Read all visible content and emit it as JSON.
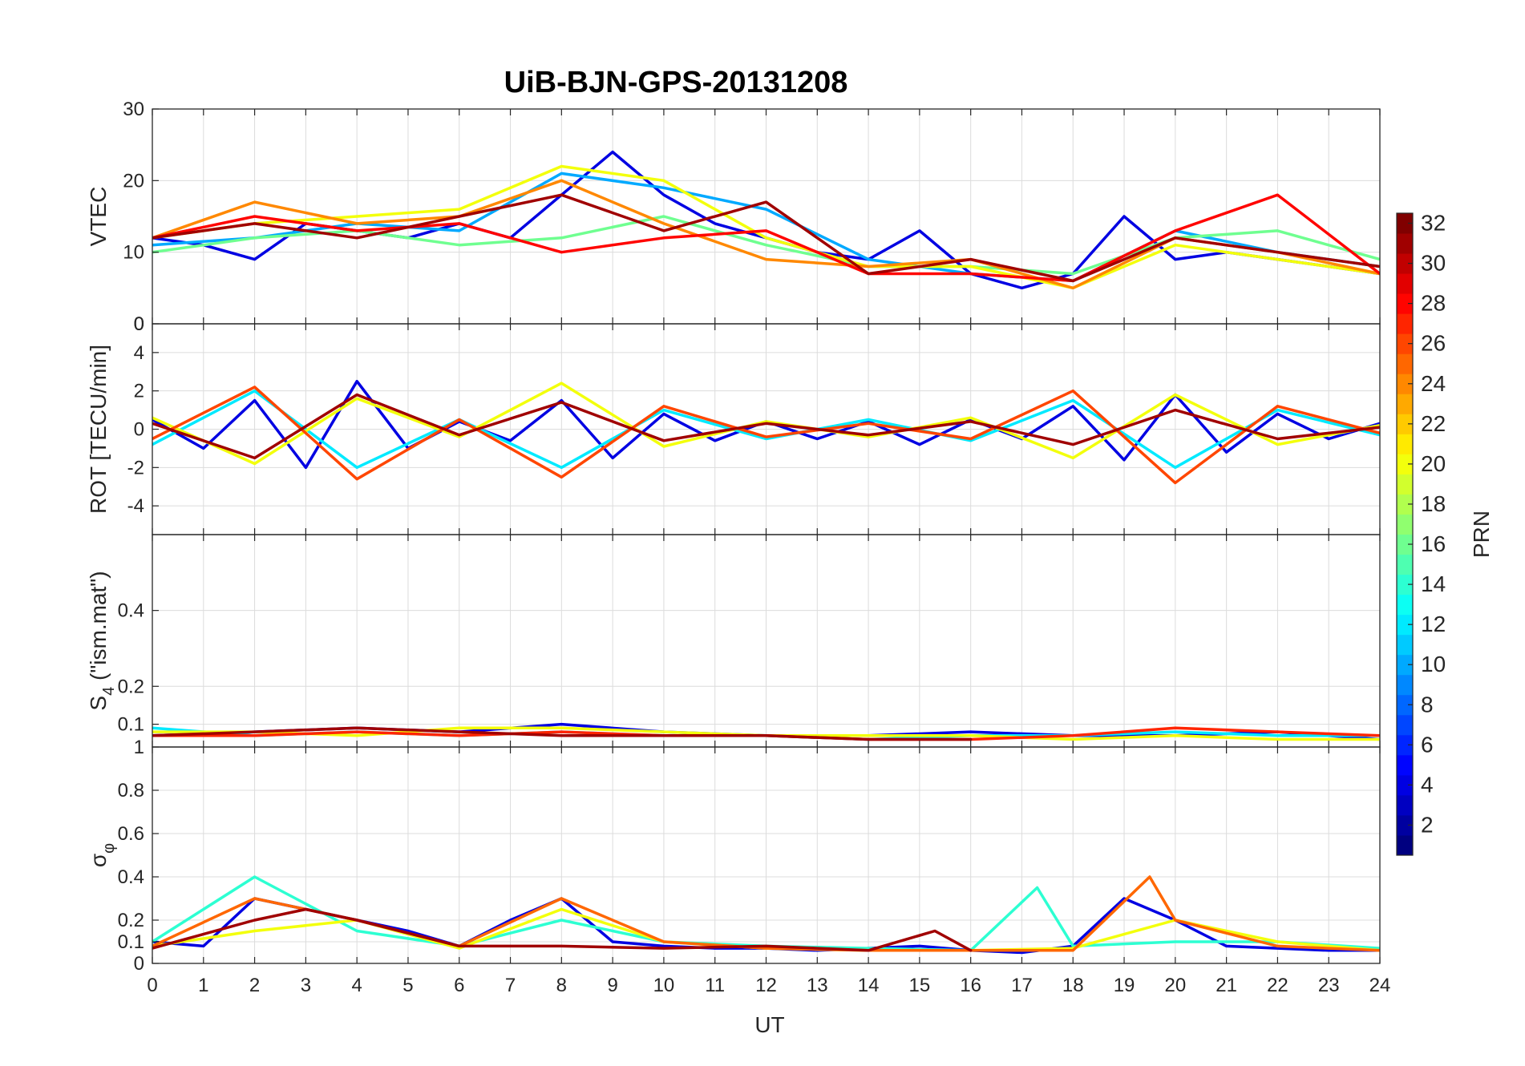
{
  "chart_data": {
    "type": "line",
    "title": "UiB-BJN-GPS-20131208",
    "xlabel": "UT",
    "xlim": [
      0,
      24
    ],
    "xticks": [
      "0",
      "1",
      "2",
      "3",
      "4",
      "5",
      "6",
      "7",
      "8",
      "9",
      "10",
      "11",
      "12",
      "13",
      "14",
      "15",
      "16",
      "17",
      "18",
      "19",
      "20",
      "21",
      "22",
      "23",
      "24"
    ],
    "colorbar": {
      "label": "PRN",
      "range": [
        1,
        32
      ],
      "ticks": [
        "2",
        "4",
        "6",
        "8",
        "10",
        "12",
        "14",
        "16",
        "18",
        "20",
        "22",
        "24",
        "26",
        "28",
        "30",
        "32"
      ],
      "colormap": "jet"
    },
    "panels": [
      {
        "key": "vtec",
        "ylabel": "VTEC",
        "ylim": [
          0,
          30
        ],
        "yticks": [
          {
            "v": 0,
            "t": "0"
          },
          {
            "v": 10,
            "t": "10"
          },
          {
            "v": 20,
            "t": "20"
          },
          {
            "v": 30,
            "t": "30"
          }
        ],
        "series": [
          {
            "prn": 4,
            "x": [
              0,
              1,
              2,
              3,
              4,
              5,
              6,
              7,
              8,
              9,
              10,
              11,
              12,
              13,
              14,
              15,
              16,
              17,
              18,
              19,
              20,
              21,
              22,
              23,
              24
            ],
            "y": [
              12,
              11,
              9,
              14,
              13,
              12,
              14,
              12,
              18,
              24,
              18,
              14,
              12,
              10,
              9,
              13,
              7,
              5,
              7,
              15,
              9,
              10,
              9,
              8,
              7
            ]
          },
          {
            "prn": 10,
            "x": [
              0,
              2,
              4,
              6,
              8,
              10,
              12,
              14,
              16,
              18,
              20,
              22,
              24
            ],
            "y": [
              11,
              12,
              14,
              13,
              21,
              19,
              16,
              9,
              7,
              6,
              13,
              10,
              8
            ]
          },
          {
            "prn": 16,
            "x": [
              0,
              2,
              4,
              6,
              8,
              10,
              12,
              14,
              16,
              18,
              20,
              22,
              24
            ],
            "y": [
              10,
              12,
              13,
              11,
              12,
              15,
              11,
              8,
              8,
              7,
              12,
              13,
              9
            ]
          },
          {
            "prn": 20,
            "x": [
              0,
              2,
              4,
              6,
              8,
              10,
              12,
              14,
              16,
              18,
              20,
              22,
              24
            ],
            "y": [
              12,
              14,
              15,
              16,
              22,
              20,
              12,
              8,
              8,
              5,
              11,
              9,
              7
            ]
          },
          {
            "prn": 24,
            "x": [
              0,
              2,
              4,
              6,
              8,
              10,
              12,
              14,
              16,
              18,
              20,
              22,
              24
            ],
            "y": [
              12,
              17,
              14,
              15,
              20,
              14,
              9,
              8,
              9,
              5,
              12,
              10,
              7
            ]
          },
          {
            "prn": 28,
            "x": [
              0,
              2,
              4,
              6,
              8,
              10,
              12,
              14,
              16,
              18,
              20,
              22,
              24
            ],
            "y": [
              12,
              15,
              13,
              14,
              10,
              12,
              13,
              7,
              7,
              6,
              13,
              18,
              7
            ]
          },
          {
            "prn": 31,
            "x": [
              0,
              2,
              4,
              6,
              8,
              10,
              12,
              14,
              16,
              18,
              20,
              22,
              24
            ],
            "y": [
              12,
              14,
              12,
              15,
              18,
              13,
              17,
              7,
              9,
              6,
              12,
              10,
              8
            ]
          }
        ]
      },
      {
        "key": "rot",
        "ylabel": "ROT [TECU/min]",
        "ylim": [
          -5.5,
          5.5
        ],
        "yticks": [
          {
            "v": -4,
            "t": "-4"
          },
          {
            "v": -2,
            "t": "-2"
          },
          {
            "v": 0,
            "t": "0"
          },
          {
            "v": 2,
            "t": "2"
          },
          {
            "v": 4,
            "t": "4"
          }
        ],
        "top_tick_label": "0",
        "series": [
          {
            "prn": 4,
            "x": [
              0,
              1,
              2,
              3,
              4,
              5,
              6,
              7,
              8,
              9,
              10,
              11,
              12,
              13,
              14,
              15,
              16,
              17,
              18,
              19,
              20,
              21,
              22,
              23,
              24
            ],
            "y": [
              0.5,
              -1,
              1.5,
              -2,
              2.5,
              -1,
              0.4,
              -0.6,
              1.5,
              -1.5,
              0.8,
              -0.6,
              0.4,
              -0.5,
              0.4,
              -0.8,
              0.5,
              -0.5,
              1.2,
              -1.6,
              1.8,
              -1.2,
              0.8,
              -0.5,
              0.3
            ]
          },
          {
            "prn": 12,
            "x": [
              0,
              2,
              4,
              6,
              8,
              10,
              12,
              14,
              16,
              18,
              20,
              22,
              24
            ],
            "y": [
              -0.8,
              2,
              -2,
              0.5,
              -2,
              1,
              -0.5,
              0.5,
              -0.6,
              1.5,
              -2,
              1,
              -0.3
            ]
          },
          {
            "prn": 20,
            "x": [
              0,
              2,
              4,
              6,
              8,
              10,
              12,
              14,
              16,
              18,
              20,
              22,
              24
            ],
            "y": [
              0.6,
              -1.8,
              1.6,
              -0.4,
              2.4,
              -0.9,
              0.4,
              -0.4,
              0.6,
              -1.5,
              1.8,
              -0.8,
              0.2
            ]
          },
          {
            "prn": 26,
            "x": [
              0,
              2,
              4,
              6,
              8,
              10,
              12,
              14,
              16,
              18,
              20,
              22,
              24
            ],
            "y": [
              -0.5,
              2.2,
              -2.6,
              0.5,
              -2.5,
              1.2,
              -0.4,
              0.3,
              -0.5,
              2,
              -2.8,
              1.2,
              -0.2
            ]
          },
          {
            "prn": 31,
            "x": [
              0,
              2,
              4,
              6,
              8,
              10,
              12,
              14,
              16,
              18,
              20,
              22,
              24
            ],
            "y": [
              0.3,
              -1.5,
              1.8,
              -0.3,
              1.4,
              -0.6,
              0.3,
              -0.3,
              0.4,
              -0.8,
              1,
              -0.5,
              0.1
            ]
          }
        ]
      },
      {
        "key": "s4",
        "ylabel": "S4 (\"ism.mat\")",
        "ylabel_main": "S",
        "ylabel_sub": "4",
        "ylabel_rest": " (\"ism.mat\")",
        "ylim": [
          0.04,
          0.6
        ],
        "yticks": [
          {
            "v": 0.1,
            "t": "0.1"
          },
          {
            "v": 0.2,
            "t": "0.2"
          },
          {
            "v": 0.4,
            "t": "0.4"
          }
        ],
        "series": [
          {
            "prn": 4,
            "x": [
              0,
              2,
              4,
              6,
              8,
              10,
              12,
              14,
              16,
              18,
              20,
              22,
              24
            ],
            "y": [
              0.07,
              0.08,
              0.09,
              0.08,
              0.1,
              0.08,
              0.07,
              0.07,
              0.08,
              0.07,
              0.07,
              0.08,
              0.06
            ]
          },
          {
            "prn": 12,
            "x": [
              0,
              2,
              4,
              6,
              8,
              10,
              12,
              14,
              16,
              18,
              20,
              22,
              24
            ],
            "y": [
              0.09,
              0.07,
              0.08,
              0.07,
              0.08,
              0.07,
              0.07,
              0.06,
              0.07,
              0.07,
              0.08,
              0.07,
              0.07
            ]
          },
          {
            "prn": 20,
            "x": [
              0,
              2,
              4,
              6,
              8,
              10,
              12,
              14,
              16,
              18,
              20,
              22,
              24
            ],
            "y": [
              0.08,
              0.08,
              0.07,
              0.09,
              0.09,
              0.08,
              0.07,
              0.07,
              0.07,
              0.06,
              0.07,
              0.06,
              0.06
            ]
          },
          {
            "prn": 27,
            "x": [
              0,
              2,
              4,
              6,
              8,
              10,
              12,
              14,
              16,
              18,
              20,
              22,
              24
            ],
            "y": [
              0.07,
              0.07,
              0.08,
              0.07,
              0.08,
              0.07,
              0.07,
              0.06,
              0.06,
              0.07,
              0.09,
              0.08,
              0.07
            ]
          },
          {
            "prn": 31,
            "x": [
              0,
              2,
              4,
              6,
              8,
              10,
              12,
              14,
              16
            ],
            "y": [
              0.07,
              0.08,
              0.09,
              0.08,
              0.07,
              0.07,
              0.07,
              0.06,
              0.06
            ]
          }
        ]
      },
      {
        "key": "sigma_phi",
        "ylabel": "σφ",
        "ylabel_main": "σ",
        "ylabel_sub": "φ",
        "ylim": [
          0,
          1
        ],
        "yticks": [
          {
            "v": 0,
            "t": "0"
          },
          {
            "v": 0.1,
            "t": "0.1"
          },
          {
            "v": 0.2,
            "t": "0.2"
          },
          {
            "v": 0.4,
            "t": "0.4"
          },
          {
            "v": 0.6,
            "t": "0.6"
          },
          {
            "v": 0.8,
            "t": "0.8"
          },
          {
            "v": 1,
            "t": "1"
          }
        ],
        "series": [
          {
            "prn": 4,
            "x": [
              0,
              1,
              2,
              3,
              4,
              5,
              6,
              7,
              8,
              9,
              10,
              11,
              12,
              13,
              14,
              15,
              16,
              17,
              18,
              19,
              20,
              21,
              22,
              23,
              24
            ],
            "y": [
              0.1,
              0.08,
              0.3,
              0.25,
              0.2,
              0.15,
              0.08,
              0.2,
              0.3,
              0.1,
              0.08,
              0.07,
              0.07,
              0.06,
              0.07,
              0.08,
              0.06,
              0.05,
              0.08,
              0.3,
              0.2,
              0.08,
              0.07,
              0.06,
              0.06
            ]
          },
          {
            "prn": 14,
            "x": [
              0,
              2,
              4,
              6,
              8,
              10,
              12,
              14,
              16,
              17.3,
              18,
              20,
              22,
              24
            ],
            "y": [
              0.1,
              0.4,
              0.15,
              0.08,
              0.2,
              0.1,
              0.08,
              0.07,
              0.06,
              0.35,
              0.08,
              0.1,
              0.1,
              0.07
            ]
          },
          {
            "prn": 20,
            "x": [
              0,
              2,
              4,
              6,
              8,
              10,
              12,
              14,
              16,
              18,
              20,
              22,
              24
            ],
            "y": [
              0.08,
              0.15,
              0.2,
              0.07,
              0.25,
              0.1,
              0.07,
              0.06,
              0.06,
              0.07,
              0.2,
              0.1,
              0.06
            ]
          },
          {
            "prn": 25,
            "x": [
              0,
              2,
              4,
              6,
              8,
              10,
              12,
              14,
              16,
              18,
              19.5,
              20,
              22,
              24
            ],
            "y": [
              0.08,
              0.3,
              0.2,
              0.08,
              0.3,
              0.1,
              0.07,
              0.06,
              0.06,
              0.06,
              0.4,
              0.2,
              0.08,
              0.06
            ]
          },
          {
            "prn": 31,
            "x": [
              0,
              2,
              3,
              4,
              6,
              8,
              10,
              12,
              14,
              15.3,
              16
            ],
            "y": [
              0.07,
              0.2,
              0.25,
              0.2,
              0.08,
              0.08,
              0.07,
              0.08,
              0.06,
              0.15,
              0.06
            ]
          }
        ]
      }
    ]
  }
}
